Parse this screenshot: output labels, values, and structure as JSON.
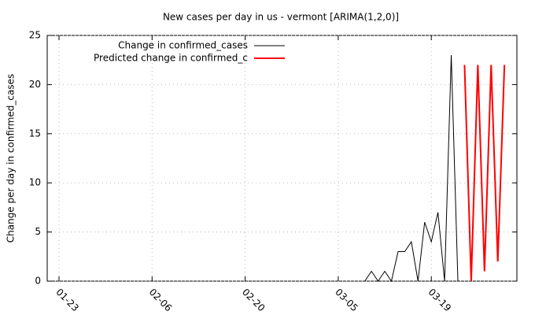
{
  "chart_data": {
    "type": "line",
    "title": "New cases per day in us - vermont [ARIMA(1,2,0)]",
    "y_label": "Change per day in confirmed_cases",
    "categories": [
      "01-23",
      null,
      null,
      null,
      null,
      null,
      null,
      null,
      null,
      null,
      null,
      null,
      null,
      null,
      "02-06",
      null,
      null,
      null,
      null,
      null,
      null,
      null,
      null,
      null,
      null,
      null,
      null,
      null,
      "02-20",
      null,
      null,
      null,
      null,
      null,
      null,
      null,
      null,
      null,
      null,
      null,
      null,
      null,
      "03-05",
      null,
      null,
      null,
      null,
      null,
      null,
      null,
      null,
      null,
      null,
      null,
      null,
      null,
      "03-19",
      null,
      null,
      null,
      null,
      null,
      null,
      null,
      null,
      null,
      null,
      null,
      null
    ],
    "series": [
      {
        "name": "Change in confirmed_cases",
        "color": "#000000",
        "width": 1,
        "values": [
          null,
          null,
          null,
          null,
          null,
          null,
          null,
          null,
          null,
          null,
          null,
          null,
          null,
          null,
          null,
          null,
          null,
          null,
          null,
          null,
          null,
          null,
          null,
          null,
          null,
          null,
          null,
          null,
          null,
          null,
          null,
          null,
          null,
          null,
          null,
          null,
          null,
          null,
          null,
          null,
          null,
          null,
          null,
          null,
          null,
          null,
          0,
          1,
          0,
          1,
          0,
          3,
          3,
          4,
          0,
          6,
          4,
          7,
          0,
          23,
          0,
          null,
          null,
          null,
          null,
          null,
          null,
          null,
          null
        ]
      },
      {
        "name": "Predicted change in confirmed_c",
        "color": "#ff0000",
        "width": 2,
        "values": [
          null,
          null,
          null,
          null,
          null,
          null,
          null,
          null,
          null,
          null,
          null,
          null,
          null,
          null,
          null,
          null,
          null,
          null,
          null,
          null,
          null,
          null,
          null,
          null,
          null,
          null,
          null,
          null,
          null,
          null,
          null,
          null,
          null,
          null,
          null,
          null,
          null,
          null,
          null,
          null,
          null,
          null,
          null,
          null,
          null,
          null,
          null,
          null,
          null,
          null,
          null,
          null,
          null,
          null,
          null,
          null,
          null,
          null,
          null,
          null,
          null,
          22,
          0,
          22,
          1,
          22,
          2,
          22,
          null
        ]
      }
    ],
    "ylim": [
      0,
      25
    ],
    "yticks": [
      0,
      5,
      10,
      15,
      20,
      25
    ],
    "grid": true,
    "legend": "top-left"
  }
}
